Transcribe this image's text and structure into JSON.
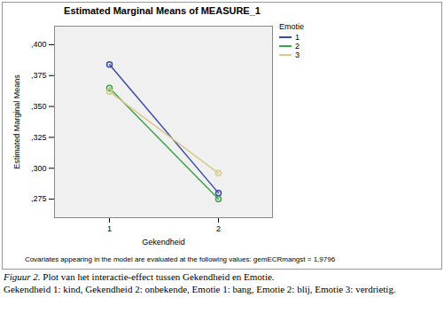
{
  "chart_data": {
    "type": "line",
    "title": "Estimated Marginal Means of MEASURE_1",
    "x_label": "Gekendheid",
    "y_label": "Estimated Marginal Means",
    "legend_title": "Emotie",
    "legend": "top-right",
    "categories": [
      "1",
      "2"
    ],
    "series": [
      {
        "name": "1",
        "color": "#3a4aa6",
        "values": [
          0.384,
          0.28
        ],
        "marker": "circle",
        "line_style": "solid"
      },
      {
        "name": "2",
        "color": "#3ea24a",
        "values": [
          0.365,
          0.275
        ],
        "marker": "circle",
        "line_style": "solid"
      },
      {
        "name": "3",
        "color": "#d8c98c",
        "values": [
          0.362,
          0.296
        ],
        "marker": "circle",
        "line_style": "solid"
      }
    ],
    "ylim": [
      0.26,
      0.415
    ],
    "yticks": [
      {
        "value": 0.275,
        "label": ",275"
      },
      {
        "value": 0.3,
        "label": ",300"
      },
      {
        "value": 0.325,
        "label": ",325"
      },
      {
        "value": 0.35,
        "label": ",350"
      },
      {
        "value": 0.375,
        "label": ",375"
      },
      {
        "value": 0.4,
        "label": ",400"
      }
    ],
    "grid": false,
    "note": "Covariates appearing in the model are evaluated at the following values: gemECRmangst = 1,9796",
    "figure_label": "Figuur 2.",
    "caption": "Plot van het interactie-effect  tussen Gekendheid en Emotie.",
    "caption_line2": "Gekendheid 1: kind, Gekendheid 2: onbekende, Emotie 1: bang, Emotie 2: blij, Emotie 3: verdrietig."
  }
}
